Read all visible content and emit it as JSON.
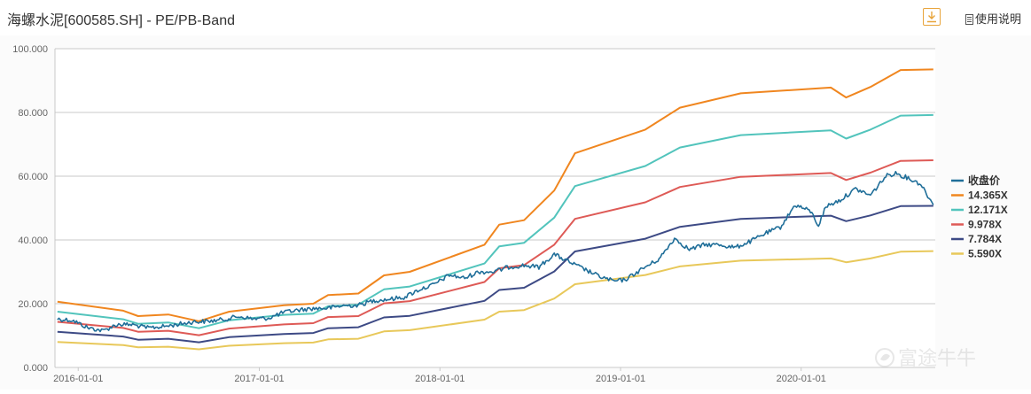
{
  "header": {
    "title": "海螺水泥[600585.SH] - PE/PB-Band",
    "download_icon": "download-icon",
    "help_icon": "document-icon",
    "help_label": "使用说明"
  },
  "watermark": {
    "text": "富途牛牛",
    "logo_icon": "futu-logo-icon"
  },
  "chart_data": {
    "type": "line",
    "xlabel": "",
    "ylabel": "",
    "x_range": [
      "2015-11-15",
      "2020-09-28"
    ],
    "ylim": [
      0,
      100
    ],
    "y_ticks": [
      "0.000",
      "20.000",
      "40.000",
      "60.000",
      "80.000",
      "100.000"
    ],
    "x_ticks": [
      {
        "date": "2016-01-01",
        "label": "2016-01-01"
      },
      {
        "date": "2017-01-01",
        "label": "2017-01-01"
      },
      {
        "date": "2018-01-01",
        "label": "2018-01-01"
      },
      {
        "date": "2019-01-01",
        "label": "2019-01-01"
      },
      {
        "date": "2020-01-01",
        "label": "2020-01-01"
      }
    ],
    "grid": "horizontal",
    "legend_position": "right",
    "series": [
      {
        "name": "14.365X",
        "color": "#f0861f",
        "points": [
          [
            "2015-11-20",
            20.6
          ],
          [
            "2016-04-01",
            17.8
          ],
          [
            "2016-05-01",
            16.1
          ],
          [
            "2016-07-01",
            16.6
          ],
          [
            "2016-09-01",
            14.5
          ],
          [
            "2016-11-01",
            17.5
          ],
          [
            "2017-02-20",
            19.5
          ],
          [
            "2017-04-20",
            20.0
          ],
          [
            "2017-05-20",
            22.7
          ],
          [
            "2017-07-20",
            23.2
          ],
          [
            "2017-09-10",
            28.9
          ],
          [
            "2017-11-01",
            30.0
          ],
          [
            "2018-04-01",
            38.5
          ],
          [
            "2018-05-01",
            44.8
          ],
          [
            "2018-06-20",
            46.2
          ],
          [
            "2018-08-20",
            55.5
          ],
          [
            "2018-10-01",
            67.2
          ],
          [
            "2019-02-20",
            74.6
          ],
          [
            "2019-05-01",
            81.5
          ],
          [
            "2019-09-01",
            86.0
          ],
          [
            "2020-03-01",
            87.8
          ],
          [
            "2020-04-01",
            84.7
          ],
          [
            "2020-05-20",
            88.0
          ],
          [
            "2020-07-20",
            93.3
          ],
          [
            "2020-09-24",
            93.5
          ]
        ]
      },
      {
        "name": "12.171X",
        "color": "#52c4bc",
        "points": [
          [
            "2015-11-20",
            17.5
          ],
          [
            "2016-04-01",
            15.1
          ],
          [
            "2016-05-01",
            13.7
          ],
          [
            "2016-07-01",
            14.1
          ],
          [
            "2016-09-01",
            12.3
          ],
          [
            "2016-11-01",
            14.8
          ],
          [
            "2017-02-20",
            16.5
          ],
          [
            "2017-04-20",
            16.9
          ],
          [
            "2017-05-20",
            19.2
          ],
          [
            "2017-07-20",
            19.7
          ],
          [
            "2017-09-10",
            24.5
          ],
          [
            "2017-11-01",
            25.4
          ],
          [
            "2018-04-01",
            32.6
          ],
          [
            "2018-05-01",
            38.0
          ],
          [
            "2018-06-20",
            39.1
          ],
          [
            "2018-08-20",
            47.0
          ],
          [
            "2018-10-01",
            56.9
          ],
          [
            "2019-02-20",
            63.2
          ],
          [
            "2019-05-01",
            69.0
          ],
          [
            "2019-09-01",
            72.9
          ],
          [
            "2020-03-01",
            74.4
          ],
          [
            "2020-04-01",
            71.8
          ],
          [
            "2020-05-20",
            74.6
          ],
          [
            "2020-07-20",
            79.0
          ],
          [
            "2020-09-24",
            79.2
          ]
        ]
      },
      {
        "name": "9.978X",
        "color": "#de5a56",
        "points": [
          [
            "2015-11-20",
            14.3
          ],
          [
            "2016-04-01",
            12.4
          ],
          [
            "2016-05-01",
            11.2
          ],
          [
            "2016-07-01",
            11.5
          ],
          [
            "2016-09-01",
            10.1
          ],
          [
            "2016-11-01",
            12.2
          ],
          [
            "2017-02-20",
            13.5
          ],
          [
            "2017-04-20",
            13.9
          ],
          [
            "2017-05-20",
            15.8
          ],
          [
            "2017-07-20",
            16.1
          ],
          [
            "2017-09-10",
            20.1
          ],
          [
            "2017-11-01",
            20.8
          ],
          [
            "2018-04-01",
            26.8
          ],
          [
            "2018-05-01",
            31.1
          ],
          [
            "2018-06-20",
            32.1
          ],
          [
            "2018-08-20",
            38.5
          ],
          [
            "2018-10-01",
            46.6
          ],
          [
            "2019-02-20",
            51.8
          ],
          [
            "2019-05-01",
            56.6
          ],
          [
            "2019-09-01",
            59.8
          ],
          [
            "2020-03-01",
            61.0
          ],
          [
            "2020-04-01",
            58.8
          ],
          [
            "2020-05-20",
            61.1
          ],
          [
            "2020-07-20",
            64.8
          ],
          [
            "2020-09-24",
            65.0
          ]
        ]
      },
      {
        "name": "7.784X",
        "color": "#3d4a85",
        "points": [
          [
            "2015-11-20",
            11.2
          ],
          [
            "2016-04-01",
            9.7
          ],
          [
            "2016-05-01",
            8.7
          ],
          [
            "2016-07-01",
            9.0
          ],
          [
            "2016-09-01",
            7.9
          ],
          [
            "2016-11-01",
            9.5
          ],
          [
            "2017-02-20",
            10.5
          ],
          [
            "2017-04-20",
            10.8
          ],
          [
            "2017-05-20",
            12.3
          ],
          [
            "2017-07-20",
            12.6
          ],
          [
            "2017-09-10",
            15.7
          ],
          [
            "2017-11-01",
            16.2
          ],
          [
            "2018-04-01",
            20.9
          ],
          [
            "2018-05-01",
            24.3
          ],
          [
            "2018-06-20",
            25.0
          ],
          [
            "2018-08-20",
            30.1
          ],
          [
            "2018-10-01",
            36.4
          ],
          [
            "2019-02-20",
            40.4
          ],
          [
            "2019-05-01",
            44.1
          ],
          [
            "2019-09-01",
            46.6
          ],
          [
            "2020-03-01",
            47.6
          ],
          [
            "2020-04-01",
            45.9
          ],
          [
            "2020-05-20",
            47.7
          ],
          [
            "2020-07-20",
            50.6
          ],
          [
            "2020-09-24",
            50.7
          ]
        ]
      },
      {
        "name": "5.590X",
        "color": "#e8c85a",
        "points": [
          [
            "2015-11-20",
            8.0
          ],
          [
            "2016-04-01",
            7.0
          ],
          [
            "2016-05-01",
            6.3
          ],
          [
            "2016-07-01",
            6.5
          ],
          [
            "2016-09-01",
            5.7
          ],
          [
            "2016-11-01",
            6.8
          ],
          [
            "2017-02-20",
            7.6
          ],
          [
            "2017-04-20",
            7.8
          ],
          [
            "2017-05-20",
            8.8
          ],
          [
            "2017-07-20",
            9.0
          ],
          [
            "2017-09-10",
            11.3
          ],
          [
            "2017-11-01",
            11.7
          ],
          [
            "2018-04-01",
            15.0
          ],
          [
            "2018-05-01",
            17.5
          ],
          [
            "2018-06-20",
            18.0
          ],
          [
            "2018-08-20",
            21.6
          ],
          [
            "2018-10-01",
            26.1
          ],
          [
            "2019-02-20",
            29.0
          ],
          [
            "2019-05-01",
            31.7
          ],
          [
            "2019-09-01",
            33.5
          ],
          [
            "2020-03-01",
            34.2
          ],
          [
            "2020-04-01",
            33.0
          ],
          [
            "2020-05-20",
            34.2
          ],
          [
            "2020-07-20",
            36.3
          ],
          [
            "2020-09-24",
            36.5
          ]
        ]
      },
      {
        "name": "收盘价",
        "color": "#1f6e99",
        "noisy": true,
        "points": [
          [
            "2015-11-20",
            15.2
          ],
          [
            "2015-12-20",
            14.8
          ],
          [
            "2016-01-20",
            12.5
          ],
          [
            "2016-02-20",
            11.5
          ],
          [
            "2016-03-20",
            13.5
          ],
          [
            "2016-04-20",
            13.4
          ],
          [
            "2016-05-20",
            12.4
          ],
          [
            "2016-06-20",
            12.8
          ],
          [
            "2016-07-20",
            13.5
          ],
          [
            "2016-08-20",
            14.3
          ],
          [
            "2016-09-20",
            14.5
          ],
          [
            "2016-10-20",
            15.0
          ],
          [
            "2016-11-20",
            16.0
          ],
          [
            "2016-12-20",
            15.2
          ],
          [
            "2017-01-20",
            15.5
          ],
          [
            "2017-02-20",
            17.3
          ],
          [
            "2017-03-20",
            18.0
          ],
          [
            "2017-04-20",
            18.5
          ],
          [
            "2017-05-20",
            18.6
          ],
          [
            "2017-06-20",
            19.4
          ],
          [
            "2017-07-20",
            19.5
          ],
          [
            "2017-08-20",
            21.0
          ],
          [
            "2017-09-20",
            21.4
          ],
          [
            "2017-10-20",
            22.0
          ],
          [
            "2017-11-20",
            24.4
          ],
          [
            "2017-12-20",
            26.0
          ],
          [
            "2018-01-20",
            29.0
          ],
          [
            "2018-02-20",
            28.0
          ],
          [
            "2018-03-20",
            30.0
          ],
          [
            "2018-04-20",
            30.0
          ],
          [
            "2018-05-20",
            31.5
          ],
          [
            "2018-06-20",
            32.0
          ],
          [
            "2018-07-20",
            31.5
          ],
          [
            "2018-08-20",
            35.5
          ],
          [
            "2018-09-20",
            33.0
          ],
          [
            "2018-10-20",
            30.8
          ],
          [
            "2018-11-20",
            28.5
          ],
          [
            "2018-12-20",
            27.0
          ],
          [
            "2019-01-10",
            27.5
          ],
          [
            "2019-02-20",
            31.5
          ],
          [
            "2019-03-20",
            34.0
          ],
          [
            "2019-04-20",
            40.5
          ],
          [
            "2019-05-20",
            37.0
          ],
          [
            "2019-06-20",
            38.5
          ],
          [
            "2019-07-20",
            38.5
          ],
          [
            "2019-08-20",
            37.6
          ],
          [
            "2019-09-20",
            39.5
          ],
          [
            "2019-10-20",
            42.0
          ],
          [
            "2019-11-20",
            44.0
          ],
          [
            "2019-12-20",
            51.0
          ],
          [
            "2020-01-20",
            49.0
          ],
          [
            "2020-02-05",
            44.5
          ],
          [
            "2020-02-20",
            50.5
          ],
          [
            "2020-03-20",
            52.5
          ],
          [
            "2020-04-20",
            56.0
          ],
          [
            "2020-05-20",
            54.0
          ],
          [
            "2020-06-20",
            60.0
          ],
          [
            "2020-07-10",
            61.0
          ],
          [
            "2020-08-10",
            59.0
          ],
          [
            "2020-08-30",
            57.5
          ],
          [
            "2020-09-24",
            51.0
          ]
        ]
      }
    ]
  }
}
